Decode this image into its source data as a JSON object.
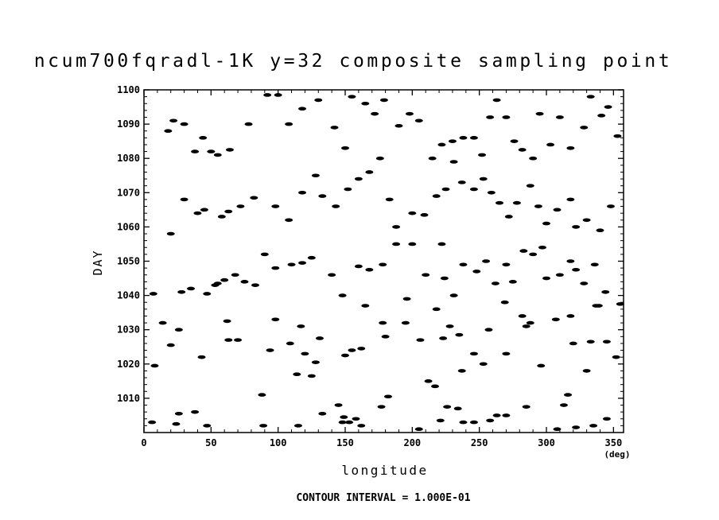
{
  "chart_data": {
    "type": "scatter",
    "title": "ncum700fqradl-1K y=32 composite sampling point",
    "xlabel": "longitude",
    "x_unit": "(deg)",
    "ylabel": "DAY",
    "xlim": [
      0,
      357.5
    ],
    "ylim": [
      1000,
      1100
    ],
    "x_ticks": [
      0,
      50,
      100,
      150,
      200,
      250,
      300,
      350
    ],
    "y_ticks": [
      1010,
      1020,
      1030,
      1040,
      1050,
      1060,
      1070,
      1080,
      1090,
      1100
    ],
    "footer": "CONTOUR INTERVAL = 1.000E-01",
    "grid": false,
    "points": [
      [
        6,
        1003
      ],
      [
        8,
        1019.5
      ],
      [
        24,
        1002.5
      ],
      [
        26,
        1005.5
      ],
      [
        38,
        1006
      ],
      [
        47,
        1002
      ],
      [
        89,
        1002
      ],
      [
        115,
        1002
      ],
      [
        133,
        1005.5
      ],
      [
        145,
        1008
      ],
      [
        148,
        1003
      ],
      [
        149,
        1004.5
      ],
      [
        153,
        1003
      ],
      [
        158,
        1004
      ],
      [
        162,
        1002
      ],
      [
        177,
        1007.5
      ],
      [
        182,
        1010.5
      ],
      [
        205,
        1001
      ],
      [
        212,
        1015
      ],
      [
        217,
        1013.5
      ],
      [
        221,
        1003.5
      ],
      [
        226,
        1007.5
      ],
      [
        234,
        1007
      ],
      [
        238,
        1003
      ],
      [
        246,
        1003
      ],
      [
        258,
        1003.5
      ],
      [
        263,
        1005
      ],
      [
        270,
        1005
      ],
      [
        285,
        1007.5
      ],
      [
        308,
        1001
      ],
      [
        313,
        1008
      ],
      [
        316,
        1011
      ],
      [
        322,
        1001.5
      ],
      [
        335,
        1002
      ],
      [
        345,
        1004
      ],
      [
        7,
        1040.5
      ],
      [
        14,
        1032
      ],
      [
        20,
        1025.5
      ],
      [
        26,
        1030
      ],
      [
        43,
        1022
      ],
      [
        55,
        1043.5
      ],
      [
        62,
        1032.5
      ],
      [
        63,
        1027
      ],
      [
        70,
        1027
      ],
      [
        88,
        1011
      ],
      [
        94,
        1024
      ],
      [
        98,
        1033
      ],
      [
        109,
        1026
      ],
      [
        114,
        1017
      ],
      [
        117,
        1031
      ],
      [
        120,
        1023
      ],
      [
        125,
        1016.5
      ],
      [
        128,
        1020.5
      ],
      [
        131,
        1027.5
      ],
      [
        150,
        1022.5
      ],
      [
        155,
        1024
      ],
      [
        162,
        1024.5
      ],
      [
        165,
        1037
      ],
      [
        178,
        1032
      ],
      [
        180,
        1028
      ],
      [
        195,
        1032
      ],
      [
        196,
        1039
      ],
      [
        206,
        1027
      ],
      [
        218,
        1036
      ],
      [
        223,
        1027.5
      ],
      [
        228,
        1031
      ],
      [
        235,
        1028.5
      ],
      [
        237,
        1018
      ],
      [
        246,
        1023
      ],
      [
        253,
        1020
      ],
      [
        257,
        1030
      ],
      [
        269,
        1038
      ],
      [
        270,
        1023
      ],
      [
        282,
        1034
      ],
      [
        285,
        1031
      ],
      [
        288,
        1032
      ],
      [
        296,
        1019.5
      ],
      [
        307,
        1033
      ],
      [
        318,
        1034
      ],
      [
        320,
        1026
      ],
      [
        330,
        1018
      ],
      [
        333,
        1026.5
      ],
      [
        337,
        1037
      ],
      [
        339,
        1037
      ],
      [
        345,
        1026.5
      ],
      [
        352,
        1022
      ],
      [
        355,
        1037.5
      ],
      [
        20,
        1058
      ],
      [
        28,
        1041
      ],
      [
        35,
        1042
      ],
      [
        47,
        1040.5
      ],
      [
        53,
        1043
      ],
      [
        60,
        1044.5
      ],
      [
        68,
        1046
      ],
      [
        75,
        1044
      ],
      [
        83,
        1043
      ],
      [
        90,
        1052
      ],
      [
        98,
        1048
      ],
      [
        110,
        1049
      ],
      [
        118,
        1049.5
      ],
      [
        125,
        1051
      ],
      [
        140,
        1046
      ],
      [
        148,
        1040
      ],
      [
        160,
        1048.5
      ],
      [
        168,
        1047.5
      ],
      [
        178,
        1049
      ],
      [
        188,
        1055
      ],
      [
        200,
        1055
      ],
      [
        210,
        1046
      ],
      [
        222,
        1055
      ],
      [
        224,
        1045
      ],
      [
        231,
        1040
      ],
      [
        238,
        1049
      ],
      [
        248,
        1047
      ],
      [
        255,
        1050
      ],
      [
        262,
        1043.5
      ],
      [
        270,
        1049
      ],
      [
        275,
        1044
      ],
      [
        283,
        1053
      ],
      [
        290,
        1052
      ],
      [
        297,
        1054
      ],
      [
        300,
        1045
      ],
      [
        310,
        1046
      ],
      [
        318,
        1050
      ],
      [
        322,
        1047.5
      ],
      [
        328,
        1043.5
      ],
      [
        336,
        1049
      ],
      [
        344,
        1041
      ],
      [
        30,
        1068
      ],
      [
        40,
        1064
      ],
      [
        45,
        1065
      ],
      [
        58,
        1063
      ],
      [
        63,
        1064.5
      ],
      [
        72,
        1066
      ],
      [
        82,
        1068.5
      ],
      [
        98,
        1066
      ],
      [
        108,
        1062
      ],
      [
        118,
        1070
      ],
      [
        128,
        1075
      ],
      [
        133,
        1069
      ],
      [
        143,
        1066
      ],
      [
        152,
        1071
      ],
      [
        160,
        1074
      ],
      [
        168,
        1076
      ],
      [
        176,
        1080
      ],
      [
        183,
        1068
      ],
      [
        188,
        1060
      ],
      [
        200,
        1064
      ],
      [
        209,
        1063.5
      ],
      [
        218,
        1069
      ],
      [
        225,
        1071
      ],
      [
        231,
        1079
      ],
      [
        237,
        1073
      ],
      [
        246,
        1071
      ],
      [
        253,
        1074
      ],
      [
        259,
        1070
      ],
      [
        265,
        1067
      ],
      [
        272,
        1063
      ],
      [
        278,
        1067
      ],
      [
        288,
        1072
      ],
      [
        294,
        1066
      ],
      [
        300,
        1061
      ],
      [
        308,
        1065
      ],
      [
        318,
        1068
      ],
      [
        322,
        1060
      ],
      [
        330,
        1062
      ],
      [
        340,
        1059
      ],
      [
        348,
        1066
      ],
      [
        18,
        1088
      ],
      [
        22,
        1091
      ],
      [
        30,
        1090
      ],
      [
        38,
        1082
      ],
      [
        44,
        1086
      ],
      [
        50,
        1082
      ],
      [
        55,
        1081
      ],
      [
        64,
        1082.5
      ],
      [
        78,
        1090
      ],
      [
        92,
        1098.5
      ],
      [
        100,
        1098.5
      ],
      [
        108,
        1090
      ],
      [
        118,
        1094.5
      ],
      [
        130,
        1097
      ],
      [
        142,
        1089
      ],
      [
        150,
        1083
      ],
      [
        155,
        1098
      ],
      [
        165,
        1096
      ],
      [
        172,
        1093
      ],
      [
        179,
        1097
      ],
      [
        190,
        1089.5
      ],
      [
        198,
        1093
      ],
      [
        205,
        1091
      ],
      [
        215,
        1080
      ],
      [
        222,
        1084
      ],
      [
        230,
        1085
      ],
      [
        238,
        1086
      ],
      [
        246,
        1086
      ],
      [
        252,
        1081
      ],
      [
        258,
        1092
      ],
      [
        263,
        1097
      ],
      [
        270,
        1092
      ],
      [
        276,
        1085
      ],
      [
        282,
        1082.5
      ],
      [
        290,
        1080
      ],
      [
        295,
        1093
      ],
      [
        303,
        1084
      ],
      [
        310,
        1092
      ],
      [
        318,
        1083
      ],
      [
        328,
        1089
      ],
      [
        333,
        1098
      ],
      [
        341,
        1092.5
      ],
      [
        346,
        1095
      ],
      [
        353,
        1086.5
      ]
    ]
  }
}
